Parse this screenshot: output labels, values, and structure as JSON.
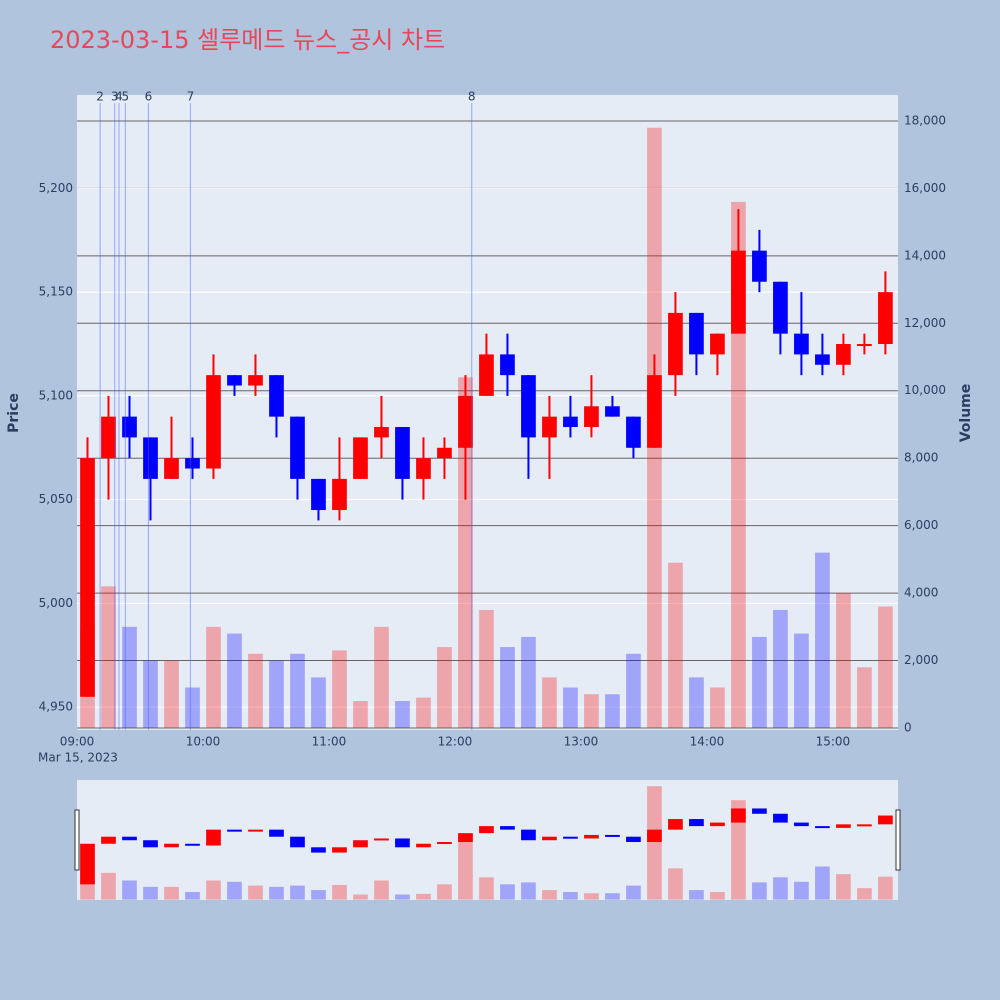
{
  "chart_data": {
    "type": "candlestick",
    "title": "2023-03-15 셀루메드 뉴스_공시 차트",
    "x": [
      "09:00",
      "09:10",
      "09:20",
      "09:30",
      "09:40",
      "09:50",
      "10:00",
      "10:10",
      "10:20",
      "10:30",
      "10:40",
      "10:50",
      "11:00",
      "11:10",
      "11:20",
      "11:30",
      "11:40",
      "11:50",
      "12:00",
      "12:10",
      "12:20",
      "12:30",
      "12:40",
      "12:50",
      "13:00",
      "13:10",
      "13:20",
      "13:30",
      "13:40",
      "13:50",
      "14:00",
      "14:10",
      "14:20",
      "14:30",
      "14:40",
      "14:50",
      "15:00",
      "15:10",
      "15:20"
    ],
    "open": [
      4955,
      5070,
      5090,
      5080,
      5060,
      5070,
      5065,
      5110,
      5105,
      5110,
      5090,
      5060,
      5045,
      5060,
      5080,
      5085,
      5060,
      5070,
      5075,
      5100,
      5120,
      5110,
      5080,
      5090,
      5085,
      5095,
      5090,
      5075,
      5110,
      5140,
      5120,
      5130,
      5170,
      5155,
      5130,
      5120,
      5115,
      5125,
      5125
    ],
    "high": [
      5080,
      5100,
      5100,
      5080,
      5090,
      5080,
      5120,
      5110,
      5120,
      5110,
      5090,
      5060,
      5080,
      5080,
      5100,
      5085,
      5080,
      5080,
      5110,
      5130,
      5130,
      5110,
      5100,
      5100,
      5110,
      5100,
      5090,
      5120,
      5150,
      5140,
      5130,
      5190,
      5180,
      5155,
      5150,
      5130,
      5130,
      5130,
      5160
    ],
    "low": [
      4955,
      5050,
      5070,
      5040,
      5060,
      5060,
      5060,
      5100,
      5100,
      5080,
      5050,
      5040,
      5040,
      5060,
      5070,
      5050,
      5050,
      5060,
      5050,
      5100,
      5100,
      5060,
      5060,
      5080,
      5080,
      5090,
      5070,
      5075,
      5100,
      5110,
      5110,
      5130,
      5150,
      5120,
      5110,
      5110,
      5110,
      5120,
      5120
    ],
    "close": [
      5070,
      5090,
      5080,
      5060,
      5070,
      5065,
      5110,
      5105,
      5110,
      5090,
      5060,
      5045,
      5060,
      5080,
      5085,
      5060,
      5070,
      5075,
      5100,
      5120,
      5110,
      5080,
      5090,
      5085,
      5095,
      5090,
      5075,
      5110,
      5140,
      5120,
      5130,
      5170,
      5155,
      5130,
      5120,
      5115,
      5125,
      5125,
      5150
    ],
    "volume": [
      3000,
      4200,
      3000,
      2000,
      2000,
      1200,
      3000,
      2800,
      2200,
      2000,
      2200,
      1500,
      2300,
      800,
      3000,
      800,
      900,
      2400,
      10400,
      3500,
      2400,
      2700,
      1500,
      1200,
      1000,
      1000,
      2200,
      17800,
      4900,
      1500,
      1200,
      15600,
      2700,
      3500,
      2800,
      5200,
      4000,
      1800,
      3600
    ],
    "increasing_color": "#ff0000",
    "decreasing_color": "#0000ff",
    "xlim": [
      "09:00",
      "15:31"
    ],
    "xticks": [
      "09:00",
      "10:00",
      "11:00",
      "12:00",
      "13:00",
      "14:00",
      "15:00"
    ],
    "x_date_label": "Mar 15, 2023",
    "ylim": [
      4939,
      5245
    ],
    "y_label": "Price",
    "yticks": [
      {
        "value": 4950,
        "label": "4,950"
      },
      {
        "value": 5000,
        "label": "5,000"
      },
      {
        "value": 5050,
        "label": "5,050"
      },
      {
        "value": 5100,
        "label": "5,100"
      },
      {
        "value": 5150,
        "label": "5,150"
      },
      {
        "value": 5200,
        "label": "5,200"
      }
    ],
    "y2lim": [
      -60,
      18770
    ],
    "y2_label": "Volume",
    "y2ticks": [
      0,
      {
        "value": 2000,
        "label": "2,000"
      },
      {
        "value": 4000,
        "label": "4,000"
      },
      {
        "value": 6000,
        "label": "6,000"
      },
      {
        "value": 8000,
        "label": "8,000"
      },
      {
        "value": 10000,
        "label": "10,000"
      },
      {
        "value": 12000,
        "label": "12,000"
      },
      {
        "value": 14000,
        "label": "14,000"
      },
      {
        "value": 16000,
        "label": "16,000"
      },
      {
        "value": 18000,
        "label": "18,000"
      }
    ],
    "annotations": [
      {
        "x": "09:11",
        "label": "2"
      },
      {
        "x": "09:18",
        "label": "3"
      },
      {
        "x": "09:20",
        "label": "4"
      },
      {
        "x": "09:23",
        "label": "5"
      },
      {
        "x": "09:34",
        "label": "6"
      },
      {
        "x": "09:54",
        "label": "7"
      },
      {
        "x": "12:08",
        "label": "8"
      }
    ],
    "range_slider": true
  }
}
